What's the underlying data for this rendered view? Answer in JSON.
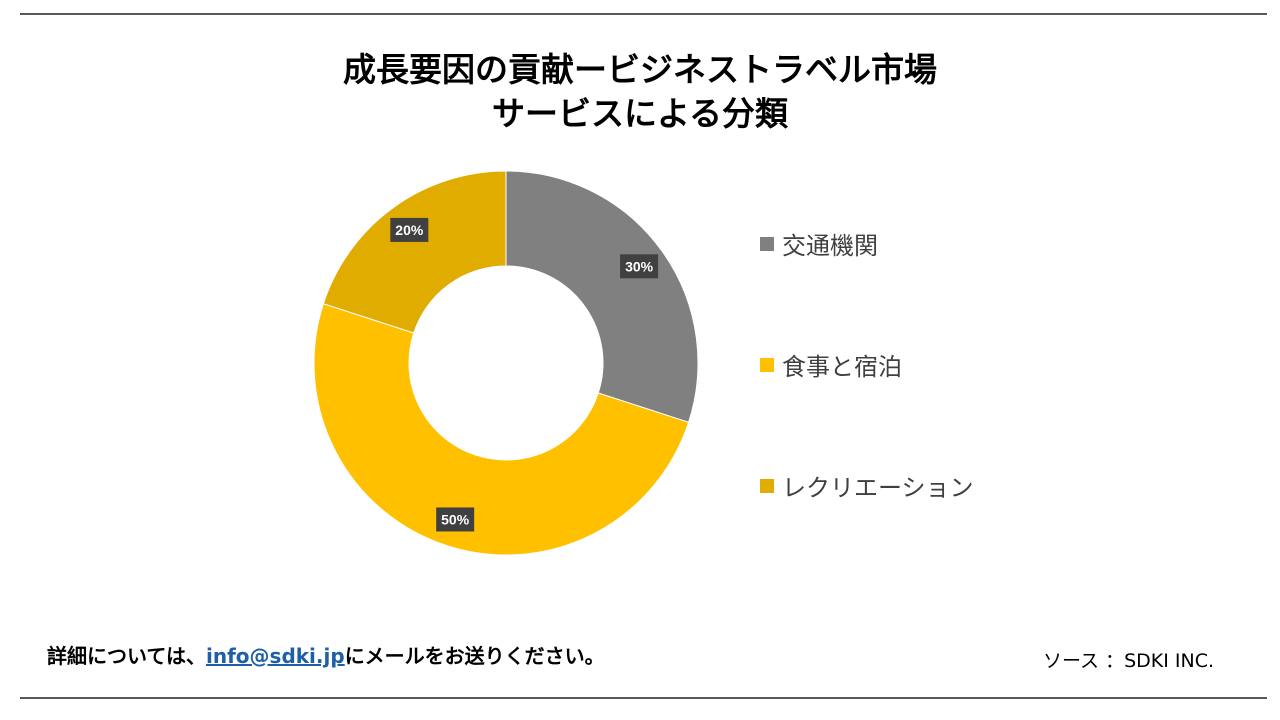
{
  "title": {
    "line1": "成長要因の貢献ービジネストラベル市場",
    "line2": "サービスによる分類"
  },
  "chart_data": {
    "type": "pie",
    "donut": true,
    "labels": [
      "交通機関",
      "食事と宿泊",
      "レクリエーション"
    ],
    "values": [
      30,
      50,
      20
    ],
    "value_labels": [
      "30%",
      "50%",
      "20%"
    ],
    "colors": [
      "#808080",
      "#FFC000",
      "#E0AC00"
    ],
    "label_box_color": "#404040",
    "legend_position": "right"
  },
  "footer": {
    "contact_prefix": "詳細については、",
    "contact_email": "info@sdki.jp",
    "contact_suffix": "にメールをお送りください。",
    "source": "ソース ：SDKI INC."
  }
}
